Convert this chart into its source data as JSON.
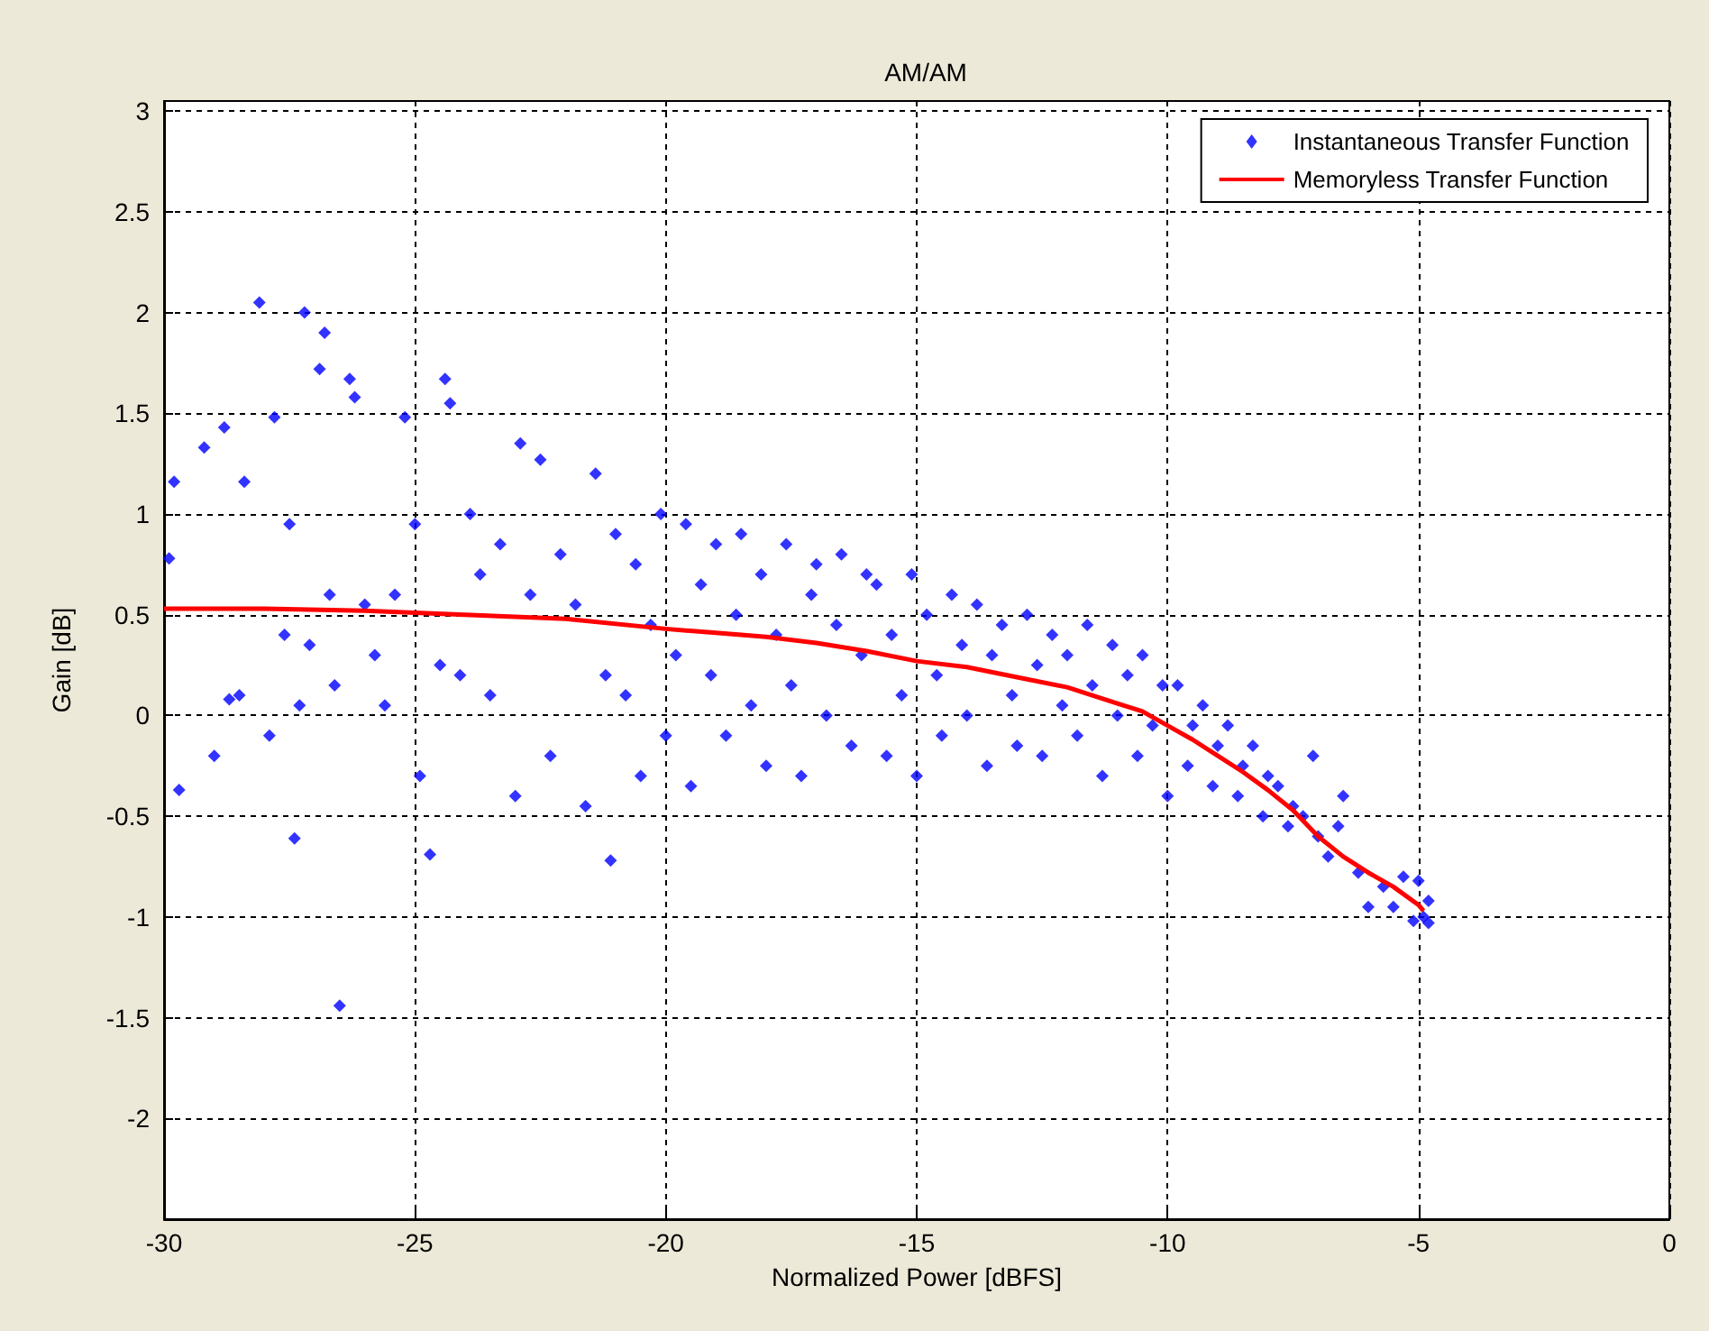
{
  "chart_data": {
    "type": "scatter",
    "title": "AM/AM",
    "xlabel": "Normalized Power [dBFS]",
    "ylabel": "Gain [dB]",
    "xlim": [
      -30,
      0
    ],
    "xticks": [
      -30,
      -25,
      -20,
      -15,
      -10,
      -5,
      0
    ],
    "ylim": [
      -2.5,
      3.05
    ],
    "yticks": [
      -2,
      -1.5,
      -1,
      -0.5,
      0,
      0.5,
      1,
      1.5,
      2,
      2.5,
      3
    ],
    "grid": true,
    "legend": "top right",
    "marker": "diamond",
    "series": [
      {
        "name": "Instantaneous Transfer Function",
        "color": "#0000ff",
        "x": [
          -29.9,
          -29.8,
          -29.7,
          -29.2,
          -29.0,
          -28.8,
          -28.7,
          -28.5,
          -28.4,
          -28.1,
          -27.9,
          -27.8,
          -27.6,
          -27.5,
          -27.4,
          -27.3,
          -27.2,
          -27.1,
          -26.9,
          -26.8,
          -26.7,
          -26.6,
          -26.5,
          -26.3,
          -26.2,
          -26.0,
          -25.8,
          -25.6,
          -25.4,
          -25.2,
          -25.0,
          -24.9,
          -24.7,
          -24.5,
          -24.4,
          -24.3,
          -24.1,
          -23.9,
          -23.7,
          -23.5,
          -23.3,
          -23.0,
          -22.9,
          -22.7,
          -22.5,
          -22.3,
          -22.1,
          -21.8,
          -21.6,
          -21.4,
          -21.2,
          -21.1,
          -21.0,
          -20.8,
          -20.6,
          -20.5,
          -20.3,
          -20.1,
          -20.0,
          -19.8,
          -19.6,
          -19.5,
          -19.3,
          -19.1,
          -19.0,
          -18.8,
          -18.6,
          -18.5,
          -18.3,
          -18.1,
          -18.0,
          -17.8,
          -17.6,
          -17.5,
          -17.3,
          -17.1,
          -17.0,
          -16.8,
          -16.6,
          -16.5,
          -16.3,
          -16.1,
          -16.0,
          -15.8,
          -15.6,
          -15.5,
          -15.3,
          -15.1,
          -15.0,
          -14.8,
          -14.6,
          -14.5,
          -14.3,
          -14.1,
          -14.0,
          -13.8,
          -13.6,
          -13.5,
          -13.3,
          -13.1,
          -13.0,
          -12.8,
          -12.6,
          -12.5,
          -12.3,
          -12.1,
          -12.0,
          -11.8,
          -11.6,
          -11.5,
          -11.3,
          -11.1,
          -11.0,
          -10.8,
          -10.6,
          -10.5,
          -10.3,
          -10.1,
          -10.0,
          -9.8,
          -9.6,
          -9.5,
          -9.3,
          -9.1,
          -9.0,
          -8.8,
          -8.6,
          -8.5,
          -8.3,
          -8.1,
          -8.0,
          -7.8,
          -7.6,
          -7.5,
          -7.3,
          -7.1,
          -7.0,
          -6.8,
          -6.6,
          -6.5,
          -6.2,
          -6.0,
          -5.7,
          -5.5,
          -5.3,
          -5.1,
          -5.0,
          -4.9,
          -4.8,
          -4.8
        ],
        "values": [
          0.78,
          1.16,
          -0.37,
          1.33,
          -0.2,
          1.43,
          0.08,
          0.1,
          1.16,
          2.05,
          -0.1,
          1.48,
          0.4,
          0.95,
          -0.61,
          0.05,
          2.0,
          0.35,
          1.72,
          1.9,
          0.6,
          0.15,
          -1.44,
          1.67,
          1.58,
          0.55,
          0.3,
          0.05,
          0.6,
          1.48,
          0.95,
          -0.3,
          -0.69,
          0.25,
          1.67,
          1.55,
          0.2,
          1.0,
          0.7,
          0.1,
          0.85,
          -0.4,
          1.35,
          0.6,
          1.27,
          -0.2,
          0.8,
          0.55,
          -0.45,
          1.2,
          0.2,
          -0.72,
          0.9,
          0.1,
          0.75,
          -0.3,
          0.45,
          1.0,
          -0.1,
          0.3,
          0.95,
          -0.35,
          0.65,
          0.2,
          0.85,
          -0.1,
          0.5,
          0.9,
          0.05,
          0.7,
          -0.25,
          0.4,
          0.85,
          0.15,
          -0.3,
          0.6,
          0.75,
          0.0,
          0.45,
          0.8,
          -0.15,
          0.3,
          0.7,
          0.65,
          -0.2,
          0.4,
          0.1,
          0.7,
          -0.3,
          0.5,
          0.2,
          -0.1,
          0.6,
          0.35,
          0.0,
          0.55,
          -0.25,
          0.3,
          0.45,
          0.1,
          -0.15,
          0.5,
          0.25,
          -0.2,
          0.4,
          0.05,
          0.3,
          -0.1,
          0.45,
          0.15,
          -0.3,
          0.35,
          0.0,
          0.2,
          -0.2,
          0.3,
          -0.05,
          0.15,
          -0.4,
          0.15,
          -0.25,
          -0.05,
          0.05,
          -0.35,
          -0.15,
          -0.05,
          -0.4,
          -0.25,
          -0.15,
          -0.5,
          -0.3,
          -0.35,
          -0.55,
          -0.45,
          -0.5,
          -0.2,
          -0.6,
          -0.7,
          -0.55,
          -0.4,
          -0.78,
          -0.95,
          -0.85,
          -0.95,
          -0.8,
          -1.02,
          -0.82,
          -1.0,
          -0.92,
          -1.03
        ]
      },
      {
        "name": "Memoryless Transfer Function",
        "type": "line",
        "color": "#ff0000",
        "marker": "none",
        "line_style": "solid",
        "x": [
          -30,
          -28,
          -26,
          -24,
          -22,
          -20,
          -19,
          -18,
          -17,
          -16,
          -15,
          -14,
          -13,
          -12,
          -11,
          -10.5,
          -10,
          -9.5,
          -9,
          -8.5,
          -8,
          -7.5,
          -7,
          -6.5,
          -6,
          -5.5,
          -5,
          -4.9
        ],
        "values": [
          0.53,
          0.53,
          0.52,
          0.5,
          0.48,
          0.43,
          0.41,
          0.39,
          0.36,
          0.32,
          0.27,
          0.24,
          0.19,
          0.14,
          0.06,
          0.02,
          -0.05,
          -0.12,
          -0.2,
          -0.28,
          -0.37,
          -0.47,
          -0.6,
          -0.7,
          -0.78,
          -0.85,
          -0.94,
          -0.97
        ]
      }
    ]
  }
}
